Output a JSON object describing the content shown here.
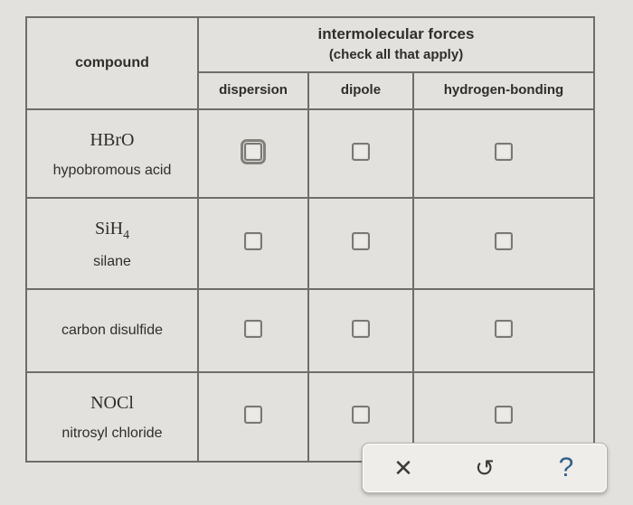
{
  "table": {
    "header_compound": "compound",
    "header_forces_title": "intermolecular forces",
    "header_forces_sub": "(check all that apply)",
    "columns": {
      "dispersion": "dispersion",
      "dipole": "dipole",
      "hbond": "hydrogen-bonding"
    },
    "rows": [
      {
        "formula_html": "HBrO",
        "name": "hypobromous acid",
        "dispersion": false,
        "dispersion_focus": true,
        "dipole": false,
        "hbond": false
      },
      {
        "formula_html": "SiH<sub>4</sub>",
        "name": "silane",
        "dispersion": false,
        "dipole": false,
        "hbond": false
      },
      {
        "formula_html": "",
        "name": "carbon disulfide",
        "dispersion": false,
        "dipole": false,
        "hbond": false
      },
      {
        "formula_html": "NOCl",
        "name": "nitrosyl chloride",
        "dispersion": false,
        "dipole": false,
        "hbond": false
      }
    ]
  },
  "toolbar": {
    "close_glyph": "✕",
    "reset_glyph": "↺",
    "help_glyph": "?"
  },
  "colors": {
    "page_bg": "#e3e1dd",
    "border": "#6f6d68",
    "checkbox_border": "#7a7874",
    "checkbox_bg": "#eceae6",
    "toolbar_bg": "#efede9",
    "help_color": "#316089"
  }
}
